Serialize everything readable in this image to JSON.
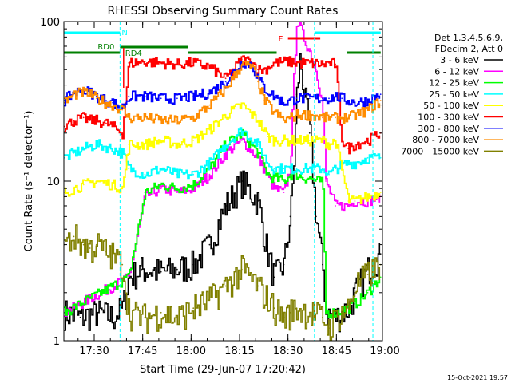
{
  "chart_data": {
    "type": "line",
    "title": "RHESSI Observing Summary Count Rates",
    "xlabel": "Start Time (29-Jun-07 17:20:42)",
    "ylabel": "Count Rate (s⁻¹ detector⁻¹)",
    "yscale": "log",
    "ylim": [
      1,
      100
    ],
    "xlim_min": [
      0,
      140
    ],
    "x_unit": "minutes after 17:20:42",
    "x_ticks": [
      {
        "min": 9.3,
        "label": "17:30"
      },
      {
        "min": 24.3,
        "label": "17:45"
      },
      {
        "min": 39.3,
        "label": "18:00"
      },
      {
        "min": 54.3,
        "label": "18:15"
      },
      {
        "min": 69.3,
        "label": "18:30"
      },
      {
        "min": 84.3,
        "label": "18:45"
      },
      {
        "min": 99.3,
        "label": "19:00"
      }
    ],
    "y_ticks": [
      {
        "value": 1,
        "label": "1"
      },
      {
        "value": 10,
        "label": "10"
      },
      {
        "value": 100,
        "label": "100"
      }
    ],
    "grid": false,
    "legend_position": "right",
    "legend_header": [
      "Det 1,3,4,5,6,9,",
      "FDecim 2, Att 0"
    ],
    "series": [
      {
        "name": "3 - 6 keV",
        "color": "#000000",
        "x": [
          0,
          5,
          10,
          15,
          18,
          20,
          24,
          30,
          35,
          40,
          45,
          50,
          55,
          60,
          63,
          65,
          68,
          70,
          71,
          72,
          73,
          74,
          76,
          78,
          80,
          81,
          84,
          88,
          90,
          94,
          98
        ],
        "y": [
          1.5,
          1.4,
          1.5,
          1.4,
          1.6,
          2.5,
          2.8,
          2.7,
          2.8,
          3.0,
          4.0,
          7.0,
          10.0,
          7.5,
          3.5,
          2.5,
          3.0,
          6.0,
          12.0,
          35.0,
          60.0,
          40.0,
          20.0,
          6.0,
          3.0,
          1.5,
          1.4,
          1.6,
          2.0,
          2.8,
          3.5
        ]
      },
      {
        "name": "6 - 12 keV",
        "color": "#ff00ff",
        "x": [
          0,
          20,
          25,
          30,
          35,
          40,
          45,
          50,
          55,
          60,
          65,
          68,
          70,
          71,
          72,
          73,
          74,
          76,
          78,
          80,
          81,
          84,
          88,
          90,
          94,
          98
        ],
        "y": [
          1.5,
          2.5,
          8.0,
          9.0,
          8.5,
          9.0,
          11.0,
          15.0,
          18.0,
          14.0,
          9.0,
          8.5,
          12.0,
          40.0,
          100.0,
          95.0,
          80.0,
          65.0,
          50.0,
          30.0,
          10.0,
          7.0,
          7.0,
          7.5,
          7.5,
          8.0
        ]
      },
      {
        "name": "12 - 25 keV",
        "color": "#00ff00",
        "x": [
          0,
          20,
          25,
          30,
          35,
          40,
          45,
          50,
          55,
          60,
          63,
          65,
          68,
          70,
          72,
          74,
          76,
          78,
          80,
          81,
          84,
          88,
          90,
          94,
          98
        ],
        "y": [
          1.5,
          2.5,
          8.5,
          9.5,
          9.0,
          9.5,
          12.0,
          17.0,
          20.0,
          15.0,
          11.0,
          10.5,
          10.0,
          11.0,
          11.0,
          10.5,
          10.5,
          10.0,
          10.0,
          1.5,
          1.5,
          1.6,
          1.7,
          2.0,
          2.5
        ]
      },
      {
        "name": "25 - 50 keV",
        "color": "#00ffff",
        "x": [
          0,
          3,
          6,
          10,
          15,
          18,
          20,
          25,
          30,
          35,
          40,
          45,
          50,
          55,
          60,
          63,
          65,
          68,
          70,
          72,
          76,
          80,
          82,
          84,
          88,
          90,
          94,
          98
        ],
        "y": [
          14,
          15,
          16,
          17,
          16,
          15,
          12,
          11,
          12,
          11,
          11,
          13,
          17,
          21,
          17,
          13,
          12,
          12,
          12,
          12,
          12,
          12,
          11,
          12,
          13,
          13,
          14,
          14
        ]
      },
      {
        "name": "50 - 100 keV",
        "color": "#ffff00",
        "x": [
          0,
          3,
          6,
          10,
          15,
          18,
          20,
          25,
          30,
          35,
          40,
          45,
          50,
          55,
          60,
          63,
          65,
          68,
          70,
          72,
          76,
          80,
          82,
          84,
          88,
          90,
          94,
          98
        ],
        "y": [
          8.5,
          9.0,
          9.5,
          10.0,
          9.5,
          9.0,
          17,
          17,
          18,
          17,
          18,
          21,
          26,
          30,
          24,
          19,
          18,
          18,
          18,
          18,
          18,
          18,
          17,
          18,
          7.5,
          7.5,
          8.0,
          8.5
        ]
      },
      {
        "name": "100 - 300 keV",
        "color": "#ff0000",
        "x": [
          0,
          3,
          6,
          8,
          10,
          13,
          15,
          18,
          20,
          25,
          30,
          35,
          40,
          45,
          50,
          55,
          58,
          60,
          62,
          65,
          68,
          70,
          72,
          76,
          80,
          82,
          84,
          86,
          88,
          90,
          94,
          98
        ],
        "y": [
          22,
          24,
          25,
          24,
          24,
          23,
          22,
          20,
          55,
          56,
          55,
          54,
          55,
          52,
          44,
          58,
          56,
          50,
          50,
          55,
          56,
          56,
          55,
          55,
          54,
          55,
          54,
          18,
          16,
          17,
          18,
          20
        ]
      },
      {
        "name": "300 - 800 keV",
        "color": "#0000ff",
        "x": [
          0,
          3,
          6,
          8,
          10,
          13,
          15,
          18,
          20,
          25,
          30,
          35,
          40,
          45,
          50,
          55,
          58,
          60,
          62,
          65,
          68,
          70,
          72,
          76,
          80,
          82,
          84,
          86,
          88,
          90,
          94,
          98
        ],
        "y": [
          32,
          36,
          37,
          36,
          34,
          32,
          31,
          29,
          34,
          34,
          33,
          33,
          34,
          36,
          42,
          56,
          54,
          44,
          38,
          34,
          31,
          32,
          33,
          33,
          33,
          33,
          34,
          33,
          32,
          31,
          32,
          35
        ]
      },
      {
        "name": "800 - 7000 keV",
        "color": "#ff8c00",
        "x": [
          0,
          3,
          6,
          8,
          10,
          13,
          15,
          18,
          20,
          25,
          30,
          35,
          40,
          45,
          50,
          55,
          58,
          60,
          62,
          65,
          68,
          70,
          72,
          76,
          80,
          82,
          84,
          86,
          88,
          90,
          94,
          98
        ],
        "y": [
          31,
          35,
          36,
          35,
          33,
          31,
          30,
          28,
          25,
          25,
          24,
          24,
          25,
          30,
          38,
          54,
          52,
          42,
          32,
          27,
          24,
          25,
          26,
          26,
          25,
          25,
          25,
          25,
          25,
          26,
          28,
          32
        ]
      },
      {
        "name": "7000 - 15000 keV",
        "color": "#808000",
        "x": [
          0,
          3,
          6,
          8,
          10,
          13,
          15,
          18,
          20,
          25,
          30,
          35,
          40,
          45,
          50,
          55,
          60,
          65,
          68,
          70,
          72,
          76,
          80,
          82,
          84,
          86,
          88,
          90,
          94,
          98
        ],
        "y": [
          4.0,
          4.5,
          4.0,
          3.8,
          4.0,
          3.6,
          3.4,
          3.0,
          1.5,
          1.4,
          1.5,
          1.4,
          1.6,
          1.8,
          2.2,
          2.8,
          2.2,
          1.6,
          1.4,
          1.5,
          1.6,
          1.5,
          1.4,
          1.2,
          1.4,
          1.5,
          1.6,
          2.2,
          2.6,
          3.0
        ]
      }
    ],
    "annotations": {
      "night_label": "N",
      "flare_label": "F",
      "rd0_label": "RD0",
      "rd4_label": "RD4",
      "night_periods": [
        [
          0,
          17.3
        ],
        [
          77.5,
          98
        ]
      ],
      "saa_periods": [
        [
          0,
          17.3
        ],
        [
          38.3,
          65.8
        ],
        [
          87.5,
          98
        ]
      ],
      "flare_period": [
        69.3,
        79.3
      ],
      "rd0_period": [
        17.3,
        38.3
      ],
      "rd4_start_min": 18.4,
      "night_boundaries_min": [
        17.3,
        77.5,
        95.6
      ],
      "flag_colors": {
        "night": "#00ffff",
        "saa": "#008000",
        "flare": "#ff0000",
        "rd": "#008000"
      }
    }
  },
  "footer_timestamp": "15-Oct-2021 19:57"
}
